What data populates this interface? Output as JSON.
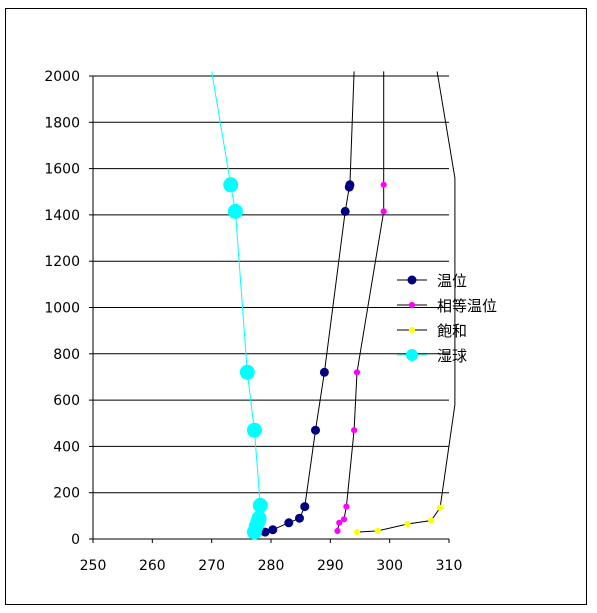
{
  "chart_data": {
    "type": "scatter",
    "title": "",
    "xlabel": "",
    "ylabel": "",
    "xlim": [
      250,
      310
    ],
    "ylim": [
      0,
      2000
    ],
    "x_ticks": [
      250,
      260,
      270,
      280,
      290,
      300,
      310
    ],
    "y_ticks": [
      0,
      200,
      400,
      600,
      800,
      1000,
      1200,
      1400,
      1600,
      1800,
      2000
    ],
    "grid": "horizontal",
    "legend_position": "right",
    "series": [
      {
        "name": "温位",
        "color": "#000080",
        "line_color": "#000000",
        "marker": "circle",
        "marker_size": "medium",
        "points": [
          [
            279,
            30
          ],
          [
            280.3,
            40
          ],
          [
            283,
            70
          ],
          [
            284.8,
            90
          ],
          [
            285.7,
            140
          ],
          [
            287.5,
            470
          ],
          [
            289,
            720
          ],
          [
            292.5,
            1415
          ],
          [
            293.2,
            1520
          ],
          [
            293.3,
            1530
          ],
          [
            294,
            2020
          ]
        ]
      },
      {
        "name": "相等温位",
        "color": "#FF00FF",
        "line_color": "#000000",
        "marker": "circle",
        "marker_size": "small",
        "points": [
          [
            291.2,
            35
          ],
          [
            291.5,
            70
          ],
          [
            292.3,
            85
          ],
          [
            292.7,
            140
          ],
          [
            294,
            470
          ],
          [
            294.5,
            720
          ],
          [
            299,
            1415
          ],
          [
            299,
            1530
          ],
          [
            299,
            2020
          ]
        ]
      },
      {
        "name": "飽和",
        "color": "#FFFF00",
        "line_color": "#000000",
        "marker": "circle",
        "marker_size": "small",
        "points": [
          [
            294.5,
            30
          ],
          [
            298,
            35
          ],
          [
            303,
            65
          ],
          [
            307,
            80
          ],
          [
            308.5,
            135
          ],
          [
            311,
            580
          ],
          [
            311,
            1560
          ],
          [
            308,
            2020
          ]
        ]
      },
      {
        "name": "湿球",
        "color": "#00FFFF",
        "line_color": "#00FFFF",
        "marker": "circle",
        "marker_size": "large",
        "points": [
          [
            277.2,
            30
          ],
          [
            277.5,
            55
          ],
          [
            277.8,
            75
          ],
          [
            278,
            90
          ],
          [
            278.2,
            145
          ],
          [
            277.2,
            470
          ],
          [
            276,
            720
          ],
          [
            274,
            1415
          ],
          [
            273.2,
            1530
          ],
          [
            270,
            2020
          ]
        ]
      }
    ]
  }
}
